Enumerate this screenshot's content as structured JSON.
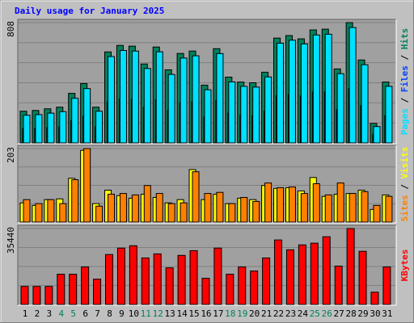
{
  "chart_data": [
    {
      "type": "bar",
      "title": "Daily usage for January 2025",
      "categories": [
        "1",
        "2",
        "3",
        "4",
        "5",
        "6",
        "7",
        "8",
        "9",
        "10",
        "11",
        "12",
        "13",
        "14",
        "15",
        "16",
        "17",
        "18",
        "19",
        "20",
        "21",
        "22",
        "23",
        "24",
        "25",
        "26",
        "27",
        "28",
        "29",
        "30",
        "31"
      ],
      "category_colors": [
        "#000000",
        "#000000",
        "#000000",
        "#00805c",
        "#00805c",
        "#000000",
        "#000000",
        "#000000",
        "#000000",
        "#000000",
        "#00805c",
        "#00805c",
        "#000000",
        "#000000",
        "#000000",
        "#000000",
        "#000000",
        "#00805c",
        "#00805c",
        "#000000",
        "#000000",
        "#000000",
        "#000000",
        "#000000",
        "#00805c",
        "#00805c",
        "#000000",
        "#000000",
        "#000000",
        "#000000",
        "#000000"
      ],
      "legend_separator": "/",
      "ylim": [
        0,
        808
      ],
      "yticks": [
        808
      ],
      "series": [
        {
          "name": "Hits",
          "color": "#00805c",
          "values": [
            213,
            218,
            229,
            240,
            333,
            399,
            240,
            611,
            655,
            650,
            530,
            644,
            491,
            601,
            617,
            388,
            633,
            442,
            409,
            404,
            475,
            704,
            721,
            699,
            759,
            764,
            497,
            808,
            557,
            131,
            409
          ]
        },
        {
          "name": "Files",
          "color": "#0040ff",
          "values": [
            96,
            98,
            103,
            108,
            150,
            180,
            108,
            275,
            295,
            292,
            240,
            290,
            220,
            270,
            278,
            175,
            285,
            200,
            185,
            182,
            214,
            317,
            325,
            315,
            342,
            344,
            224,
            364,
            250,
            59,
            184
          ]
        },
        {
          "name": "Pages",
          "color": "#00e0ff",
          "values": [
            186,
            190,
            200,
            210,
            300,
            365,
            213,
            580,
            621,
            617,
            500,
            612,
            460,
            570,
            585,
            357,
            600,
            410,
            380,
            375,
            443,
            670,
            690,
            665,
            725,
            730,
            465,
            775,
            525,
            110,
            380
          ]
        }
      ]
    },
    {
      "type": "bar",
      "legend_separator": "/",
      "ylim": [
        0,
        203
      ],
      "yticks": [
        203
      ],
      "series": [
        {
          "name": "Visits",
          "color": "#ffff00",
          "values": [
            53,
            46,
            62,
            64,
            121,
            198,
            51,
            88,
            73,
            66,
            77,
            68,
            53,
            62,
            145,
            62,
            77,
            51,
            66,
            62,
            101,
            93,
            95,
            86,
            123,
            71,
            77,
            79,
            88,
            35,
            75
          ]
        },
        {
          "name": "Sites",
          "color": "#ff8000",
          "values": [
            62,
            51,
            62,
            51,
            117,
            203,
            44,
            77,
            79,
            75,
            101,
            79,
            51,
            53,
            139,
            79,
            82,
            51,
            68,
            57,
            108,
            95,
            97,
            79,
            106,
            75,
            108,
            79,
            84,
            46,
            71
          ]
        }
      ]
    },
    {
      "type": "bar",
      "ylim": [
        0,
        35440
      ],
      "yticks": [
        35440
      ],
      "series": [
        {
          "name": "KBytes",
          "color": "#ff0000",
          "values": [
            8400,
            8400,
            8400,
            14100,
            14100,
            17500,
            11800,
            23300,
            26300,
            27400,
            21700,
            23600,
            17100,
            22900,
            25100,
            12200,
            26300,
            14100,
            17500,
            15600,
            21700,
            30100,
            25500,
            27800,
            28600,
            31600,
            17900,
            35440,
            24800,
            5700,
            17500
          ]
        }
      ]
    }
  ]
}
